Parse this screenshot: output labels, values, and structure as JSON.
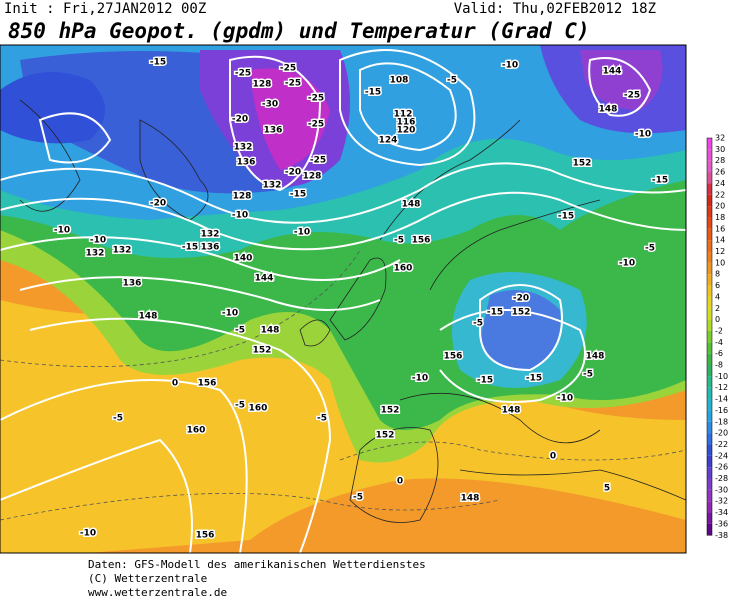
{
  "header": {
    "init": "Init : Fri,27JAN2012 00Z",
    "valid": "Valid: Thu,02FEB2012 18Z",
    "title": "850 hPa Geopot. (gpdm) und Temperatur (Grad C)"
  },
  "colorbar": {
    "labels": [
      32,
      30,
      28,
      26,
      24,
      22,
      20,
      18,
      16,
      14,
      12,
      10,
      8,
      6,
      4,
      2,
      0,
      -2,
      -4,
      -6,
      -8,
      -10,
      -12,
      -14,
      -16,
      -18,
      -20,
      -22,
      -24,
      -26,
      -28,
      -30,
      -32,
      -34,
      -36,
      -38
    ]
  },
  "map": {
    "labels": [
      "-15",
      "-25",
      "-25",
      "128",
      "-25",
      "-25",
      "-30",
      "-20",
      "136",
      "-25",
      "132",
      "136",
      "-25",
      "128",
      "-20",
      "132",
      "-15",
      "128",
      "-10",
      "-20",
      "-10",
      "-10",
      "-10",
      "132",
      "132",
      "132",
      "136",
      "140",
      "-15",
      "144",
      "136",
      "148",
      "-10",
      "-5",
      "148",
      "152",
      "0",
      "156",
      "-5",
      "-5",
      "160",
      "160",
      "-5",
      "-10",
      "156",
      "-5",
      "108",
      "-5",
      "-10",
      "112",
      "116",
      "120",
      "124",
      "-15",
      "144",
      "148",
      "-25",
      "-10",
      "-15",
      "152",
      "-15",
      "148",
      "-5",
      "156",
      "160",
      "-5",
      "-10",
      "-20",
      "152",
      "-15",
      "-5",
      "156",
      "-15",
      "-10",
      "-15",
      "148",
      "-5",
      "-10",
      "152",
      "152",
      "148",
      "148",
      "0",
      "5",
      "0"
    ]
  },
  "footer": {
    "lines": [
      "Daten: GFS-Modell des amerikanischen Wetterdienstes",
      "(C) Wetterzentrale",
      "www.wetterzentrale.de"
    ]
  }
}
